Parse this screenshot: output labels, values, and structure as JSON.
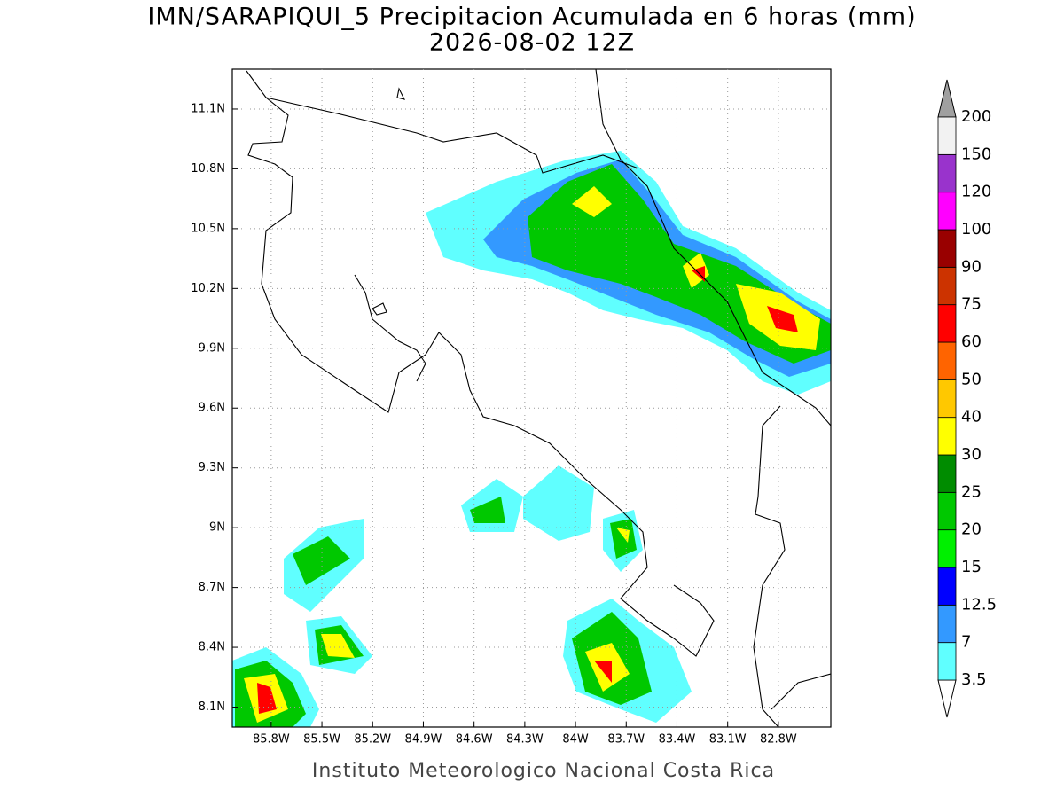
{
  "map": {
    "title": "IMN/SARAPIQUI_5 Precipitacion Acumulada en 6 horas (mm)",
    "subtitle": "2026-08-02 12Z",
    "footer": "Instituto Meteorologico Nacional Costa Rica",
    "xlim": [
      -86.03,
      -82.49
    ],
    "ylim": [
      8.0,
      11.3
    ],
    "grid": true,
    "xticks": [
      {
        "value": -85.8,
        "label": "85.8W"
      },
      {
        "value": -85.5,
        "label": "85.5W"
      },
      {
        "value": -85.2,
        "label": "85.2W"
      },
      {
        "value": -84.9,
        "label": "84.9W"
      },
      {
        "value": -84.6,
        "label": "84.6W"
      },
      {
        "value": -84.3,
        "label": "84.3W"
      },
      {
        "value": -84.0,
        "label": "84W"
      },
      {
        "value": -83.7,
        "label": "83.7W"
      },
      {
        "value": -83.4,
        "label": "83.4W"
      },
      {
        "value": -83.1,
        "label": "83.1W"
      },
      {
        "value": -82.8,
        "label": "82.8W"
      }
    ],
    "yticks": [
      {
        "value": 8.1,
        "label": "8.1N"
      },
      {
        "value": 8.4,
        "label": "8.4N"
      },
      {
        "value": 8.7,
        "label": "8.7N"
      },
      {
        "value": 9.0,
        "label": "9N"
      },
      {
        "value": 9.3,
        "label": "9.3N"
      },
      {
        "value": 9.6,
        "label": "9.6N"
      },
      {
        "value": 9.9,
        "label": "9.9N"
      },
      {
        "value": 10.2,
        "label": "10.2N"
      },
      {
        "value": 10.5,
        "label": "10.5N"
      },
      {
        "value": 10.8,
        "label": "10.8N"
      },
      {
        "value": 11.1,
        "label": "11.1N"
      }
    ],
    "colorbar": {
      "levels": [
        3.5,
        7,
        12.5,
        15,
        20,
        25,
        30,
        40,
        50,
        60,
        75,
        90,
        100,
        120,
        150,
        200
      ],
      "colors": [
        "#60ffff",
        "#3399ff",
        "#0000ff",
        "#00f000",
        "#00c800",
        "#008c00",
        "#ffff00",
        "#ffc800",
        "#ff6400",
        "#ff0000",
        "#cc3300",
        "#990000",
        "#ff00ff",
        "#9933cc",
        "#f2f2f2"
      ],
      "under_color": "#ffffff",
      "over_color": "#a0a0a0"
    }
  }
}
